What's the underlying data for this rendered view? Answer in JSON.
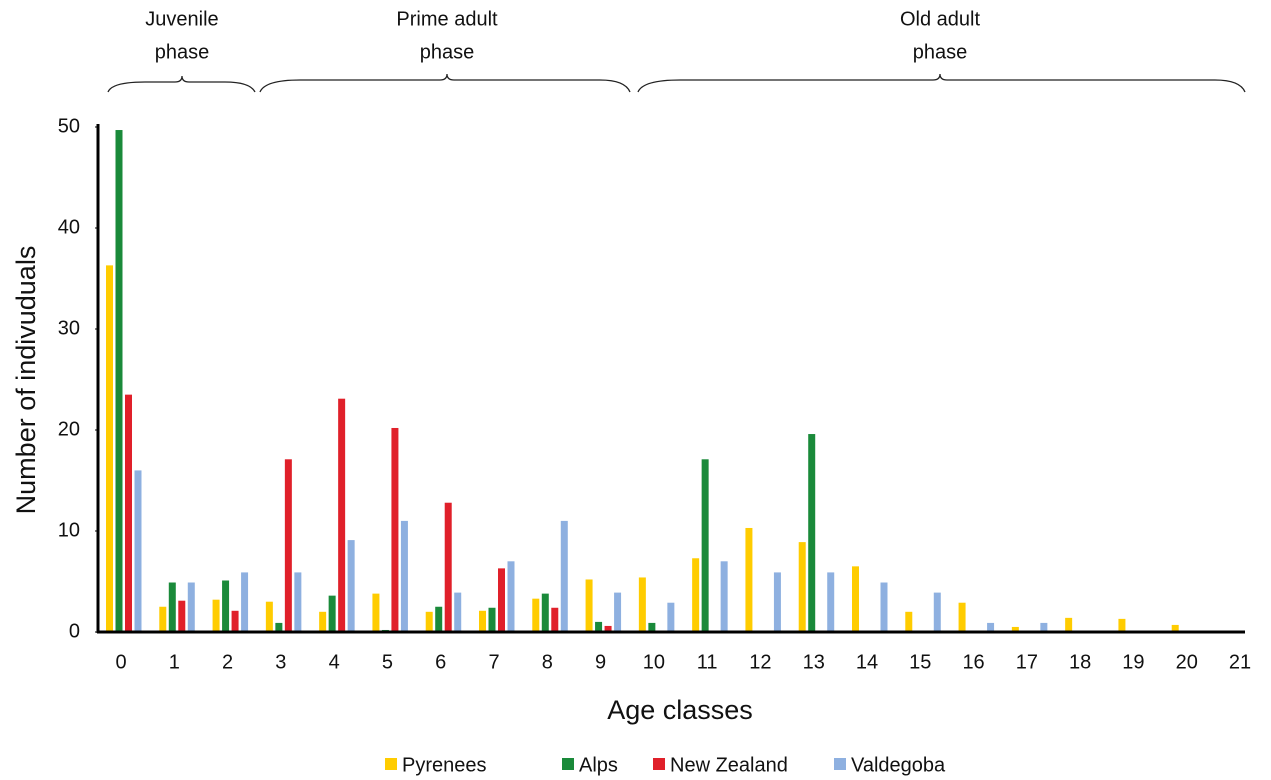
{
  "chart_data": {
    "type": "bar",
    "x_label": "Age classes",
    "y_label": "Number of indivuduals",
    "annotations": [
      {
        "lines": [
          "Juvenile",
          "phase"
        ]
      },
      {
        "lines": [
          "Prime adult",
          "phase"
        ]
      },
      {
        "lines": [
          "Old adult",
          "phase"
        ]
      }
    ],
    "categories": [
      "0",
      "1",
      "2",
      "3",
      "4",
      "5",
      "6",
      "7",
      "8",
      "9",
      "10",
      "11",
      "12",
      "13",
      "14",
      "15",
      "16",
      "17",
      "18",
      "19",
      "20",
      "21"
    ],
    "series": [
      {
        "name": "Pyrenees",
        "color": "#ffcc00",
        "values": [
          36.3,
          2.5,
          3.2,
          3.0,
          2.0,
          3.8,
          2.0,
          2.1,
          3.3,
          5.2,
          5.4,
          7.3,
          10.3,
          8.9,
          6.5,
          2.0,
          2.9,
          0.5,
          1.4,
          1.3,
          0.7,
          null
        ]
      },
      {
        "name": "Alps",
        "color": "#1a8a3a",
        "values": [
          49.7,
          4.9,
          5.1,
          0.9,
          3.6,
          0.2,
          2.5,
          2.4,
          3.8,
          1.0,
          0.9,
          17.1,
          0,
          19.6,
          0,
          0,
          0,
          0,
          0,
          0,
          0,
          null
        ]
      },
      {
        "name": "New Zealand",
        "color": "#e0202a",
        "values": [
          23.5,
          3.1,
          2.1,
          17.1,
          23.1,
          20.2,
          12.8,
          6.3,
          2.4,
          0.6,
          0,
          0,
          0,
          0,
          0,
          0,
          0,
          0,
          0,
          0,
          0,
          null
        ]
      },
      {
        "name": "Valdegoba",
        "color": "#8eb0e0",
        "values": [
          16.0,
          4.9,
          5.9,
          5.9,
          9.1,
          11.0,
          3.9,
          7.0,
          11.0,
          3.9,
          2.9,
          7.0,
          5.9,
          5.9,
          4.9,
          3.9,
          0.9,
          0.9,
          0,
          0,
          0,
          null
        ]
      }
    ],
    "ylim": [
      0,
      50
    ],
    "yticks": [
      0,
      10,
      20,
      30,
      40,
      50
    ],
    "grid": false,
    "legend": "bottom"
  }
}
